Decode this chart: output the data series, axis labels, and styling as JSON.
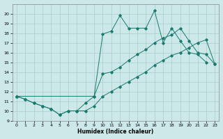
{
  "xlabel": "Humidex (Indice chaleur)",
  "bg_color": "#cde8e8",
  "line_color": "#1a7a6e",
  "grid_color": "#aacccc",
  "ylim": [
    9,
    21
  ],
  "xlim": [
    -0.5,
    23.5
  ],
  "yticks": [
    9,
    10,
    11,
    12,
    13,
    14,
    15,
    16,
    17,
    18,
    19,
    20
  ],
  "xticks": [
    0,
    1,
    2,
    3,
    4,
    5,
    6,
    7,
    8,
    9,
    10,
    11,
    12,
    13,
    14,
    15,
    16,
    17,
    18,
    19,
    20,
    21,
    22,
    23
  ],
  "line1_x": [
    0,
    1,
    2,
    3,
    4,
    5,
    6,
    7,
    8,
    9,
    10,
    11,
    12,
    13,
    14,
    15,
    16,
    17,
    18,
    19,
    20,
    21,
    22
  ],
  "line1_y": [
    11.5,
    11.2,
    10.8,
    10.5,
    10.2,
    9.6,
    10.0,
    10.0,
    10.8,
    11.5,
    17.9,
    18.2,
    19.8,
    18.5,
    18.5,
    18.5,
    20.3,
    17.0,
    18.5,
    17.2,
    16.0,
    15.8,
    15.0
  ],
  "line2_x": [
    0,
    9,
    10,
    11,
    12,
    13,
    14,
    15,
    16,
    17,
    18,
    19,
    20,
    21,
    22,
    23
  ],
  "line2_y": [
    11.5,
    11.5,
    13.8,
    14.0,
    14.5,
    15.2,
    15.8,
    16.3,
    17.0,
    17.5,
    17.8,
    18.5,
    17.2,
    16.0,
    15.8,
    14.8
  ],
  "line3_x": [
    0,
    1,
    2,
    3,
    4,
    5,
    6,
    7,
    8,
    9,
    10,
    11,
    12,
    13,
    14,
    15,
    16,
    17,
    18,
    19,
    20,
    21,
    22,
    23
  ],
  "line3_y": [
    11.5,
    11.2,
    10.8,
    10.5,
    10.2,
    9.6,
    10.0,
    10.0,
    10.0,
    10.5,
    11.5,
    12.0,
    12.5,
    13.0,
    13.5,
    14.0,
    14.7,
    15.2,
    15.7,
    16.0,
    16.5,
    17.0,
    17.3,
    14.8
  ]
}
